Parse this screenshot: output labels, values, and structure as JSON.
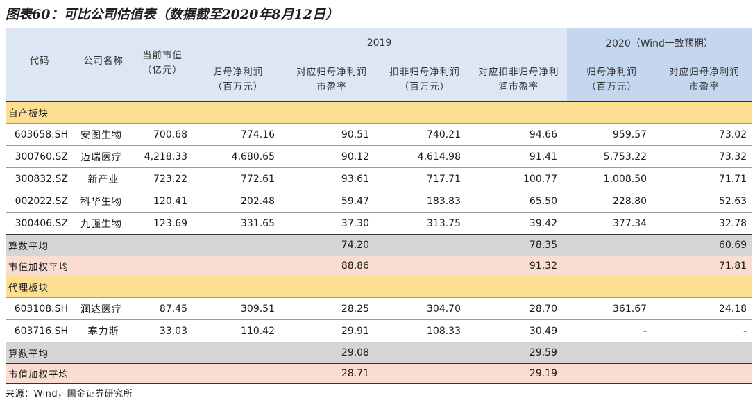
{
  "title": "图表60：可比公司估值表（数据截至2020年8月12日）",
  "header": {
    "code": "代码",
    "company": "公司名称",
    "mcap_line1": "当前市值",
    "mcap_line2": "（亿元）",
    "year_2019": "2019",
    "year_2020": "2020（Wind一致预期）",
    "np_line1": "归母净利润",
    "np_line2": "（百万元）",
    "pe_line1": "对应归母净利润",
    "pe_line2": "市盈率",
    "npx_line1": "扣非归母净利润",
    "npx_line2": "（百万元）",
    "pex_line1": "对应扣非归母净利",
    "pex_line2": "润市盈率",
    "np20_line1": "归母净利润",
    "np20_line2": "（百万元）",
    "pe20_line1": "对应归母净利润",
    "pe20_line2": "市盈率"
  },
  "sections": [
    {
      "label": "自产板块",
      "rows": [
        {
          "code": "603658.SH",
          "name": "安图生物",
          "mcap": "700.68",
          "np19": "774.16",
          "pe19": "90.51",
          "npx19": "740.21",
          "pex19": "94.66",
          "np20": "959.57",
          "pe20": "73.02"
        },
        {
          "code": "300760.SZ",
          "name": "迈瑞医疗",
          "mcap": "4,218.33",
          "np19": "4,680.65",
          "pe19": "90.12",
          "npx19": "4,614.98",
          "pex19": "91.41",
          "np20": "5,753.22",
          "pe20": "73.32"
        },
        {
          "code": "300832.SZ",
          "name": "新产业",
          "mcap": "723.22",
          "np19": "772.61",
          "pe19": "93.61",
          "npx19": "717.71",
          "pex19": "100.77",
          "np20": "1,008.50",
          "pe20": "71.71"
        },
        {
          "code": "002022.SZ",
          "name": "科华生物",
          "mcap": "120.41",
          "np19": "202.48",
          "pe19": "59.47",
          "npx19": "183.83",
          "pex19": "65.50",
          "np20": "228.80",
          "pe20": "52.63"
        },
        {
          "code": "300406.SZ",
          "name": "九强生物",
          "mcap": "123.69",
          "np19": "331.65",
          "pe19": "37.30",
          "npx19": "313.75",
          "pex19": "39.42",
          "np20": "377.34",
          "pe20": "32.78"
        }
      ],
      "avg": {
        "label": "算数平均",
        "pe19": "74.20",
        "pex19": "78.35",
        "pe20": "60.69"
      },
      "wavg": {
        "label": "市值加权平均",
        "pe19": "88.86",
        "pex19": "91.32",
        "pe20": "71.81"
      }
    },
    {
      "label": "代理板块",
      "rows": [
        {
          "code": "603108.SH",
          "name": "润达医疗",
          "mcap": "87.45",
          "np19": "309.51",
          "pe19": "28.25",
          "npx19": "304.70",
          "pex19": "28.70",
          "np20": "361.67",
          "pe20": "24.18"
        },
        {
          "code": "603716.SH",
          "name": "塞力斯",
          "mcap": "33.03",
          "np19": "110.42",
          "pe19": "29.91",
          "npx19": "108.33",
          "pex19": "30.49",
          "np20": "-",
          "pe20": "-"
        }
      ],
      "avg": {
        "label": "算数平均",
        "pe19": "29.08",
        "pex19": "29.59",
        "pe20": ""
      },
      "wavg": {
        "label": "市值加权平均",
        "pe19": "28.71",
        "pex19": "29.19",
        "pe20": ""
      }
    }
  ],
  "source": "来源：Wind，国金证券研究所"
}
